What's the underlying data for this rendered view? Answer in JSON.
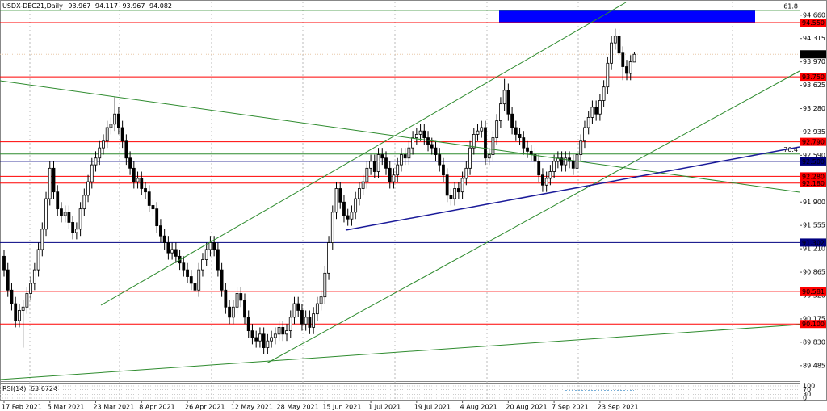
{
  "chart_data": {
    "type": "candlestick",
    "title": "USDX-DEC21,Daily",
    "categories": [
      "17 Feb 2021",
      null,
      null,
      null,
      null,
      null,
      null,
      null,
      null,
      null,
      null,
      null,
      "5 Mar 2021",
      null,
      null,
      null,
      null,
      null,
      null,
      null,
      null,
      null,
      null,
      null,
      "23 Mar 2021",
      null,
      null,
      null,
      null,
      null,
      null,
      null,
      null,
      null,
      null,
      null,
      "8 Apr 2021",
      null,
      null,
      null,
      null,
      null,
      null,
      null,
      null,
      null,
      null,
      null,
      "26 Apr 2021",
      null,
      null,
      null,
      null,
      null,
      null,
      null,
      null,
      null,
      null,
      null,
      "12 May 2021",
      null,
      null,
      null,
      null,
      null,
      null,
      null,
      null,
      null,
      null,
      null,
      "28 May 2021",
      null,
      null,
      null,
      null,
      null,
      null,
      null,
      null,
      null,
      null,
      null,
      "15 Jun 2021",
      null,
      null,
      null,
      null,
      null,
      null,
      null,
      null,
      null,
      null,
      null,
      "1 Jul 2021",
      null,
      null,
      null,
      null,
      null,
      null,
      null,
      null,
      null,
      null,
      null,
      "19 Jul 2021",
      null,
      null,
      null,
      null,
      null,
      null,
      null,
      null,
      null,
      null,
      null,
      "4 Aug 2021",
      null,
      null,
      null,
      null,
      null,
      null,
      null,
      null,
      null,
      null,
      null,
      "20 Aug 2021",
      null,
      null,
      null,
      null,
      null,
      null,
      null,
      null,
      null,
      null,
      null,
      "7 Sep 2021",
      null,
      null,
      null,
      null,
      null,
      null,
      null,
      null,
      null,
      null,
      null,
      "23 Sep 2021",
      null,
      null,
      null,
      null,
      null,
      null,
      null,
      null,
      null
    ],
    "series": {
      "open": [
        91.1,
        90.9,
        90.6,
        90.4,
        90.15,
        90.3,
        90.35,
        90.55,
        90.7,
        90.9,
        91.2,
        91.5,
        91.95,
        92.4,
        92.05,
        91.8,
        91.7,
        91.75,
        91.6,
        91.45,
        91.5,
        91.8,
        92.0,
        92.2,
        92.45,
        92.55,
        92.7,
        92.8,
        93.0,
        93.05,
        93.2,
        93.0,
        92.8,
        92.55,
        92.4,
        92.2,
        92.25,
        92.1,
        92.05,
        91.85,
        91.8,
        91.55,
        91.4,
        91.3,
        91.15,
        91.2,
        91.1,
        91.0,
        90.9,
        90.8,
        90.7,
        90.6,
        90.9,
        91.05,
        91.2,
        91.3,
        91.2,
        90.9,
        90.6,
        90.35,
        90.2,
        90.35,
        90.55,
        90.45,
        90.2,
        90.0,
        89.9,
        89.85,
        89.95,
        89.75,
        89.85,
        89.9,
        89.95,
        90.05,
        89.95,
        90.0,
        90.2,
        90.4,
        90.3,
        90.1,
        90.2,
        90.05,
        90.25,
        90.4,
        90.5,
        90.85,
        91.3,
        91.75,
        92.1,
        91.9,
        91.7,
        91.65,
        91.75,
        91.95,
        92.1,
        92.2,
        92.4,
        92.5,
        92.35,
        92.6,
        92.55,
        92.4,
        92.2,
        92.3,
        92.45,
        92.6,
        92.55,
        92.7,
        92.85,
        92.9,
        92.95,
        92.85,
        92.75,
        92.7,
        92.6,
        92.45,
        92.3,
        92.0,
        91.95,
        92.1,
        92.05,
        92.25,
        92.4,
        92.7,
        92.9,
        92.95,
        93.0,
        92.55,
        92.6,
        92.85,
        93.1,
        93.35,
        93.55,
        93.2,
        93.0,
        92.9,
        92.85,
        92.7,
        92.65,
        92.6,
        92.5,
        92.3,
        92.15,
        92.25,
        92.35,
        92.5,
        92.55,
        92.45,
        92.55,
        92.5,
        92.4,
        92.6,
        92.8,
        93.0,
        93.15,
        93.3,
        93.2,
        93.4,
        93.6,
        93.95,
        94.25,
        94.35,
        94.1,
        93.9,
        93.8,
        93.967
      ],
      "high": [
        91.2,
        91.0,
        90.7,
        90.5,
        90.4,
        90.45,
        90.65,
        90.8,
        91.0,
        91.3,
        91.6,
        92.05,
        92.5,
        92.5,
        92.15,
        91.9,
        91.85,
        91.85,
        91.7,
        91.6,
        91.9,
        92.1,
        92.3,
        92.55,
        92.65,
        92.8,
        92.9,
        93.1,
        93.15,
        93.45,
        93.3,
        93.1,
        92.9,
        92.65,
        92.5,
        92.35,
        92.35,
        92.2,
        92.15,
        91.95,
        91.9,
        91.65,
        91.5,
        91.4,
        91.3,
        91.3,
        91.2,
        91.1,
        91.0,
        90.9,
        90.8,
        91.0,
        91.15,
        91.3,
        91.4,
        91.4,
        91.3,
        91.0,
        90.7,
        90.45,
        90.45,
        90.65,
        90.65,
        90.55,
        90.3,
        90.1,
        90.0,
        90.05,
        90.05,
        89.95,
        90.0,
        90.05,
        90.15,
        90.15,
        90.1,
        90.3,
        90.5,
        90.5,
        90.4,
        90.3,
        90.3,
        90.35,
        90.5,
        90.6,
        90.95,
        91.4,
        91.85,
        92.2,
        92.2,
        92.0,
        91.8,
        91.85,
        92.05,
        92.2,
        92.3,
        92.5,
        92.6,
        92.6,
        92.7,
        92.7,
        92.65,
        92.5,
        92.4,
        92.55,
        92.7,
        92.7,
        92.8,
        92.95,
        93.0,
        93.05,
        93.05,
        92.95,
        92.85,
        92.8,
        92.7,
        92.55,
        92.4,
        92.1,
        92.2,
        92.2,
        92.35,
        92.5,
        92.8,
        93.0,
        93.05,
        93.1,
        93.1,
        92.7,
        92.95,
        93.2,
        93.45,
        93.72,
        93.65,
        93.3,
        93.1,
        93.0,
        92.95,
        92.8,
        92.75,
        92.7,
        92.6,
        92.4,
        92.35,
        92.45,
        92.6,
        92.65,
        92.65,
        92.65,
        92.65,
        92.6,
        92.7,
        92.9,
        93.1,
        93.25,
        93.4,
        93.4,
        93.5,
        93.7,
        94.05,
        94.35,
        94.46,
        94.45,
        94.2,
        94.0,
        94.07,
        94.117
      ],
      "low": [
        90.8,
        90.5,
        90.3,
        90.05,
        90.05,
        89.75,
        90.25,
        90.45,
        90.6,
        90.8,
        91.1,
        91.4,
        91.85,
        91.95,
        91.7,
        91.6,
        91.6,
        91.5,
        91.35,
        91.35,
        91.4,
        91.7,
        91.9,
        92.1,
        92.35,
        92.45,
        92.6,
        92.7,
        92.9,
        92.95,
        92.9,
        92.7,
        92.45,
        92.3,
        92.1,
        92.1,
        92.0,
        91.95,
        91.75,
        91.7,
        91.45,
        91.3,
        91.2,
        91.05,
        91.05,
        91.0,
        90.9,
        90.8,
        90.7,
        90.6,
        90.5,
        90.5,
        90.8,
        90.95,
        91.1,
        91.1,
        90.8,
        90.5,
        90.25,
        90.1,
        90.1,
        90.25,
        90.35,
        90.1,
        89.9,
        89.8,
        89.75,
        89.75,
        89.65,
        89.65,
        89.75,
        89.8,
        89.85,
        89.85,
        89.85,
        89.9,
        90.1,
        90.2,
        90.0,
        90.0,
        89.95,
        89.95,
        90.15,
        90.3,
        90.4,
        90.75,
        91.2,
        91.65,
        91.8,
        91.6,
        91.55,
        91.55,
        91.65,
        91.85,
        92.0,
        92.1,
        92.3,
        92.25,
        92.25,
        92.45,
        92.3,
        92.1,
        92.1,
        92.2,
        92.35,
        92.45,
        92.45,
        92.6,
        92.75,
        92.8,
        92.75,
        92.65,
        92.6,
        92.5,
        92.35,
        92.2,
        91.9,
        91.85,
        91.85,
        91.95,
        91.95,
        92.15,
        92.3,
        92.6,
        92.8,
        92.85,
        92.45,
        92.45,
        92.5,
        92.75,
        93.0,
        93.25,
        93.1,
        92.9,
        92.8,
        92.75,
        92.6,
        92.55,
        92.5,
        92.4,
        92.2,
        92.05,
        92.05,
        92.15,
        92.25,
        92.4,
        92.35,
        92.35,
        92.4,
        92.3,
        92.3,
        92.5,
        92.7,
        92.9,
        93.05,
        93.1,
        93.1,
        93.3,
        93.5,
        93.85,
        94.15,
        94.0,
        93.7,
        93.7,
        93.7,
        93.967
      ],
      "close": [
        90.9,
        90.6,
        90.4,
        90.15,
        90.3,
        90.35,
        90.55,
        90.7,
        90.9,
        91.2,
        91.5,
        91.95,
        92.4,
        92.05,
        91.8,
        91.7,
        91.75,
        91.6,
        91.45,
        91.5,
        91.8,
        92.0,
        92.2,
        92.45,
        92.55,
        92.7,
        92.8,
        93.0,
        93.05,
        93.2,
        93.0,
        92.8,
        92.55,
        92.4,
        92.2,
        92.25,
        92.1,
        92.05,
        91.85,
        91.8,
        91.55,
        91.4,
        91.3,
        91.15,
        91.2,
        91.1,
        91.0,
        90.9,
        90.8,
        90.7,
        90.6,
        90.9,
        91.05,
        91.2,
        91.3,
        91.2,
        90.9,
        90.6,
        90.35,
        90.2,
        90.35,
        90.55,
        90.45,
        90.2,
        90.0,
        89.9,
        89.85,
        89.95,
        89.75,
        89.85,
        89.9,
        89.95,
        90.05,
        89.95,
        90.0,
        90.2,
        90.4,
        90.3,
        90.1,
        90.2,
        90.05,
        90.25,
        90.4,
        90.5,
        90.85,
        91.3,
        91.75,
        92.1,
        91.9,
        91.7,
        91.65,
        91.75,
        91.95,
        92.1,
        92.2,
        92.4,
        92.5,
        92.35,
        92.6,
        92.55,
        92.4,
        92.2,
        92.3,
        92.45,
        92.6,
        92.55,
        92.7,
        92.85,
        92.9,
        92.95,
        92.85,
        92.75,
        92.7,
        92.6,
        92.45,
        92.3,
        92.0,
        91.95,
        92.1,
        92.05,
        92.25,
        92.4,
        92.7,
        92.9,
        92.95,
        93.0,
        92.55,
        92.6,
        92.85,
        93.1,
        93.35,
        93.55,
        93.2,
        93.0,
        92.9,
        92.85,
        92.7,
        92.65,
        92.6,
        92.5,
        92.3,
        92.15,
        92.25,
        92.35,
        92.5,
        92.55,
        92.45,
        92.55,
        92.5,
        92.4,
        92.6,
        92.8,
        93.0,
        93.15,
        93.3,
        93.2,
        93.4,
        93.6,
        93.95,
        94.25,
        94.35,
        94.1,
        93.9,
        93.8,
        93.97,
        94.082
      ]
    },
    "up_color": "#ffffff",
    "down_color": "#000000",
    "ylim": [
      89.28,
      94.86
    ],
    "yticks": [
      {
        "value": 94.66,
        "label": "94.660"
      },
      {
        "value": 94.315,
        "label": "94.315"
      },
      {
        "value": 93.97,
        "label": "93.970"
      },
      {
        "value": 93.625,
        "label": "93.625"
      },
      {
        "value": 93.28,
        "label": "93.280"
      },
      {
        "value": 92.935,
        "label": "92.935"
      },
      {
        "value": 92.59,
        "label": "92.590"
      },
      {
        "value": 92.245,
        "label": "92.245"
      },
      {
        "value": 91.9,
        "label": "91.900"
      },
      {
        "value": 91.555,
        "label": "91.555"
      },
      {
        "value": 91.21,
        "label": "91.210"
      },
      {
        "value": 90.865,
        "label": "90.865"
      },
      {
        "value": 90.52,
        "label": "90.520"
      },
      {
        "value": 90.175,
        "label": "90.175"
      },
      {
        "value": 89.83,
        "label": "89.830"
      },
      {
        "value": 89.485,
        "label": "89.485"
      }
    ],
    "levels": [
      {
        "value": 94.55,
        "label": "94.550",
        "color": "#ff0000"
      },
      {
        "value": 93.75,
        "label": "93.750",
        "color": "#ff0000"
      },
      {
        "value": 92.79,
        "label": "92.790",
        "color": "#ff0000"
      },
      {
        "value": 92.5,
        "label": "92.500",
        "color": "#000080"
      },
      {
        "value": 92.28,
        "label": "92.280",
        "color": "#ff0000"
      },
      {
        "value": 92.18,
        "label": "92.180",
        "color": "#ff0000"
      },
      {
        "value": 91.302,
        "label": "91.302",
        "color": "#000080"
      },
      {
        "value": 90.581,
        "label": "90.581",
        "color": "#ff0000"
      },
      {
        "value": 90.1,
        "label": "90.100",
        "color": "#ff0000"
      }
    ],
    "fib_levels": [
      {
        "value": 94.73,
        "label": "61.8",
        "color": "#2e8b2e"
      },
      {
        "value": 92.61,
        "label": "76.4",
        "color": "#2e8b2e"
      }
    ],
    "rsi": {
      "label": "RSI(14)",
      "value": 63.6724,
      "ylim": [
        0,
        100
      ],
      "yticks": [
        100,
        70,
        30,
        0
      ]
    }
  }
}
